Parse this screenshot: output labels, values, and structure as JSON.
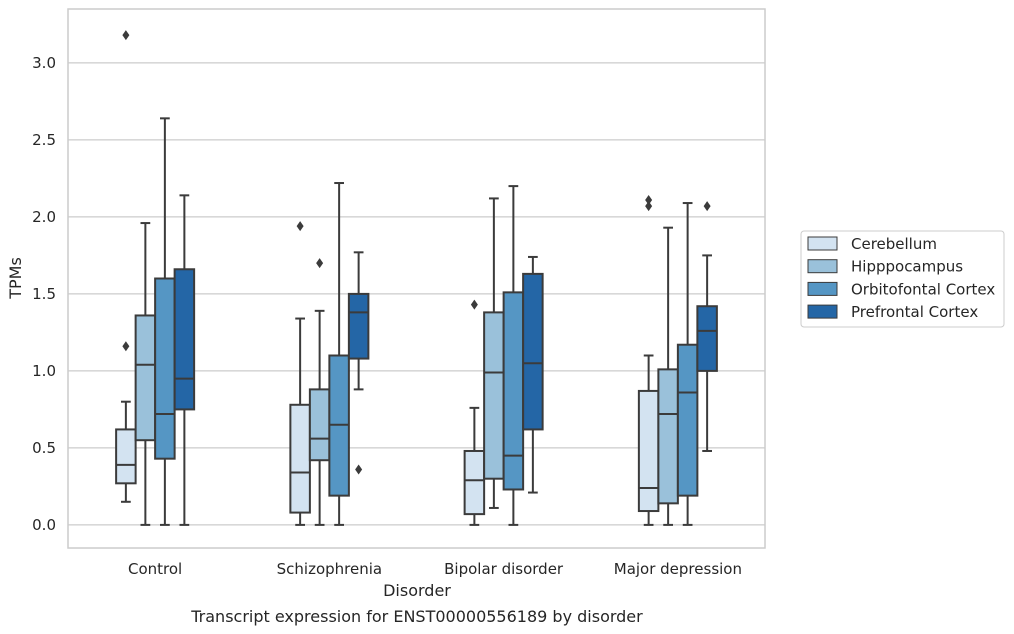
{
  "caption": "Transcript expression for ENST00000556189 by disorder",
  "chart_data": {
    "type": "boxplot",
    "xlabel": "Disorder",
    "ylabel": "TPMs",
    "ylim": [
      -0.15,
      3.35
    ],
    "yticks": [
      0.0,
      0.5,
      1.0,
      1.5,
      2.0,
      2.5,
      3.0
    ],
    "ytick_labels": [
      "0.0",
      "0.5",
      "1.0",
      "1.5",
      "2.0",
      "2.5",
      "3.0"
    ],
    "grid": true,
    "legend_position": "right",
    "categories": [
      "Control",
      "Schizophrenia",
      "Bipolar disorder",
      "Major depression"
    ],
    "series": [
      {
        "name": "Cerebellum",
        "color": "#d3e3f1",
        "boxes": [
          {
            "whislo": 0.15,
            "q1": 0.27,
            "med": 0.39,
            "q3": 0.62,
            "whishi": 0.8,
            "fliers": [
              1.16,
              3.18
            ]
          },
          {
            "whislo": 0.0,
            "q1": 0.08,
            "med": 0.34,
            "q3": 0.78,
            "whishi": 1.34,
            "fliers": [
              1.94
            ]
          },
          {
            "whislo": 0.0,
            "q1": 0.07,
            "med": 0.29,
            "q3": 0.48,
            "whishi": 0.76,
            "fliers": [
              1.43
            ]
          },
          {
            "whislo": 0.0,
            "q1": 0.09,
            "med": 0.24,
            "q3": 0.87,
            "whishi": 1.1,
            "fliers": [
              2.07,
              2.11
            ]
          }
        ]
      },
      {
        "name": "Hipppocampus",
        "color": "#9ac1da",
        "boxes": [
          {
            "whislo": 0.0,
            "q1": 0.55,
            "med": 1.04,
            "q3": 1.36,
            "whishi": 1.96,
            "fliers": []
          },
          {
            "whislo": 0.0,
            "q1": 0.42,
            "med": 0.56,
            "q3": 0.88,
            "whishi": 1.39,
            "fliers": [
              1.7
            ]
          },
          {
            "whislo": 0.11,
            "q1": 0.3,
            "med": 0.99,
            "q3": 1.38,
            "whishi": 2.12,
            "fliers": []
          },
          {
            "whislo": 0.0,
            "q1": 0.14,
            "med": 0.72,
            "q3": 1.01,
            "whishi": 1.93,
            "fliers": []
          }
        ]
      },
      {
        "name": "Orbitofontal Cortex",
        "color": "#5596c4",
        "boxes": [
          {
            "whislo": 0.0,
            "q1": 0.43,
            "med": 0.72,
            "q3": 1.6,
            "whishi": 2.64,
            "fliers": []
          },
          {
            "whislo": 0.0,
            "q1": 0.19,
            "med": 0.65,
            "q3": 1.1,
            "whishi": 2.22,
            "fliers": []
          },
          {
            "whislo": 0.0,
            "q1": 0.23,
            "med": 0.45,
            "q3": 1.51,
            "whishi": 2.2,
            "fliers": []
          },
          {
            "whislo": 0.0,
            "q1": 0.19,
            "med": 0.86,
            "q3": 1.17,
            "whishi": 2.09,
            "fliers": []
          }
        ]
      },
      {
        "name": "Prefrontal Cortex",
        "color": "#2466a6",
        "boxes": [
          {
            "whislo": 0.0,
            "q1": 0.75,
            "med": 0.95,
            "q3": 1.66,
            "whishi": 2.14,
            "fliers": []
          },
          {
            "whislo": 0.88,
            "q1": 1.08,
            "med": 1.38,
            "q3": 1.5,
            "whishi": 1.77,
            "fliers": [
              0.36
            ]
          },
          {
            "whislo": 0.21,
            "q1": 0.62,
            "med": 1.05,
            "q3": 1.63,
            "whishi": 1.74,
            "fliers": []
          },
          {
            "whislo": 0.48,
            "q1": 1.0,
            "med": 1.26,
            "q3": 1.42,
            "whishi": 1.75,
            "fliers": [
              2.07
            ]
          }
        ]
      }
    ]
  }
}
